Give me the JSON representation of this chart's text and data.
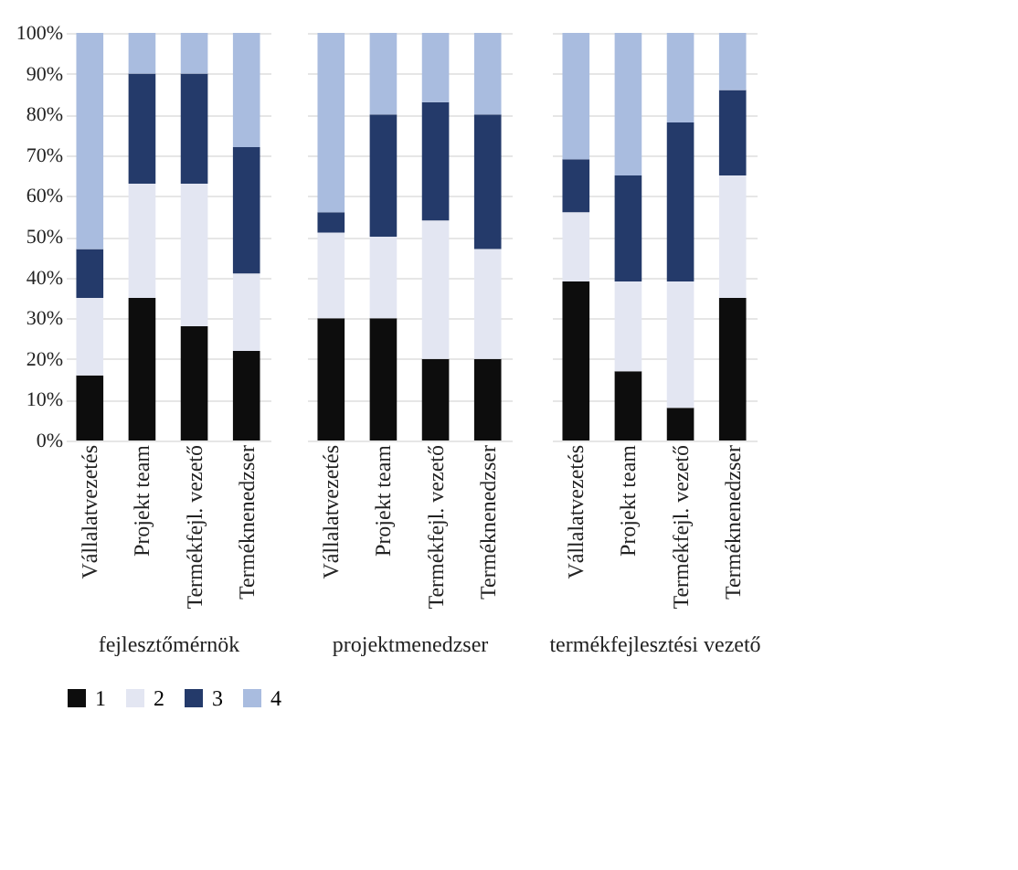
{
  "chart_data": {
    "type": "bar",
    "stacked": true,
    "categories": [
      "Vállalatvezetés",
      "Projekt team",
      "Termékfejl. vezető",
      "Terméknenedzser",
      "Vállalatvezetés",
      "Projekt team",
      "Termékfejl. vezető",
      "Terméknenedzser",
      "Vállalatvezetés",
      "Projekt team",
      "Termékfejl. vezető",
      "Terméknenedzser"
    ],
    "annotations": [
      "fejlesztőmérnök",
      "projektmenedzser",
      "termékfejlesztési vezető"
    ],
    "series": [
      {
        "name": "1",
        "color": "#0d0d0d",
        "values": [
          16,
          35,
          28,
          22,
          30,
          30,
          20,
          20,
          39,
          17,
          8,
          35
        ]
      },
      {
        "name": "2",
        "color": "#e3e6f2",
        "values": [
          19,
          28,
          35,
          19,
          21,
          20,
          34,
          27,
          17,
          22,
          31,
          30
        ]
      },
      {
        "name": "3",
        "color": "#243a6a",
        "values": [
          12,
          27,
          27,
          31,
          5,
          30,
          29,
          33,
          13,
          26,
          39,
          21
        ]
      },
      {
        "name": "4",
        "color": "#a9bcdf",
        "values": [
          53,
          10,
          10,
          28,
          44,
          20,
          17,
          20,
          31,
          35,
          22,
          14
        ]
      }
    ],
    "ylim": [
      0,
      100
    ],
    "yticks": [
      {
        "value": 0,
        "label": "0%"
      },
      {
        "value": 10,
        "label": "10%"
      },
      {
        "value": 20,
        "label": "20%"
      },
      {
        "value": 30,
        "label": "30%"
      },
      {
        "value": 40,
        "label": "40%"
      },
      {
        "value": 50,
        "label": "50%"
      },
      {
        "value": 60,
        "label": "60%"
      },
      {
        "value": 70,
        "label": "70%"
      },
      {
        "value": 80,
        "label": "80%"
      },
      {
        "value": 90,
        "label": "90%"
      },
      {
        "value": 100,
        "label": "100%"
      }
    ],
    "grid": "y",
    "legend": "bottom"
  }
}
